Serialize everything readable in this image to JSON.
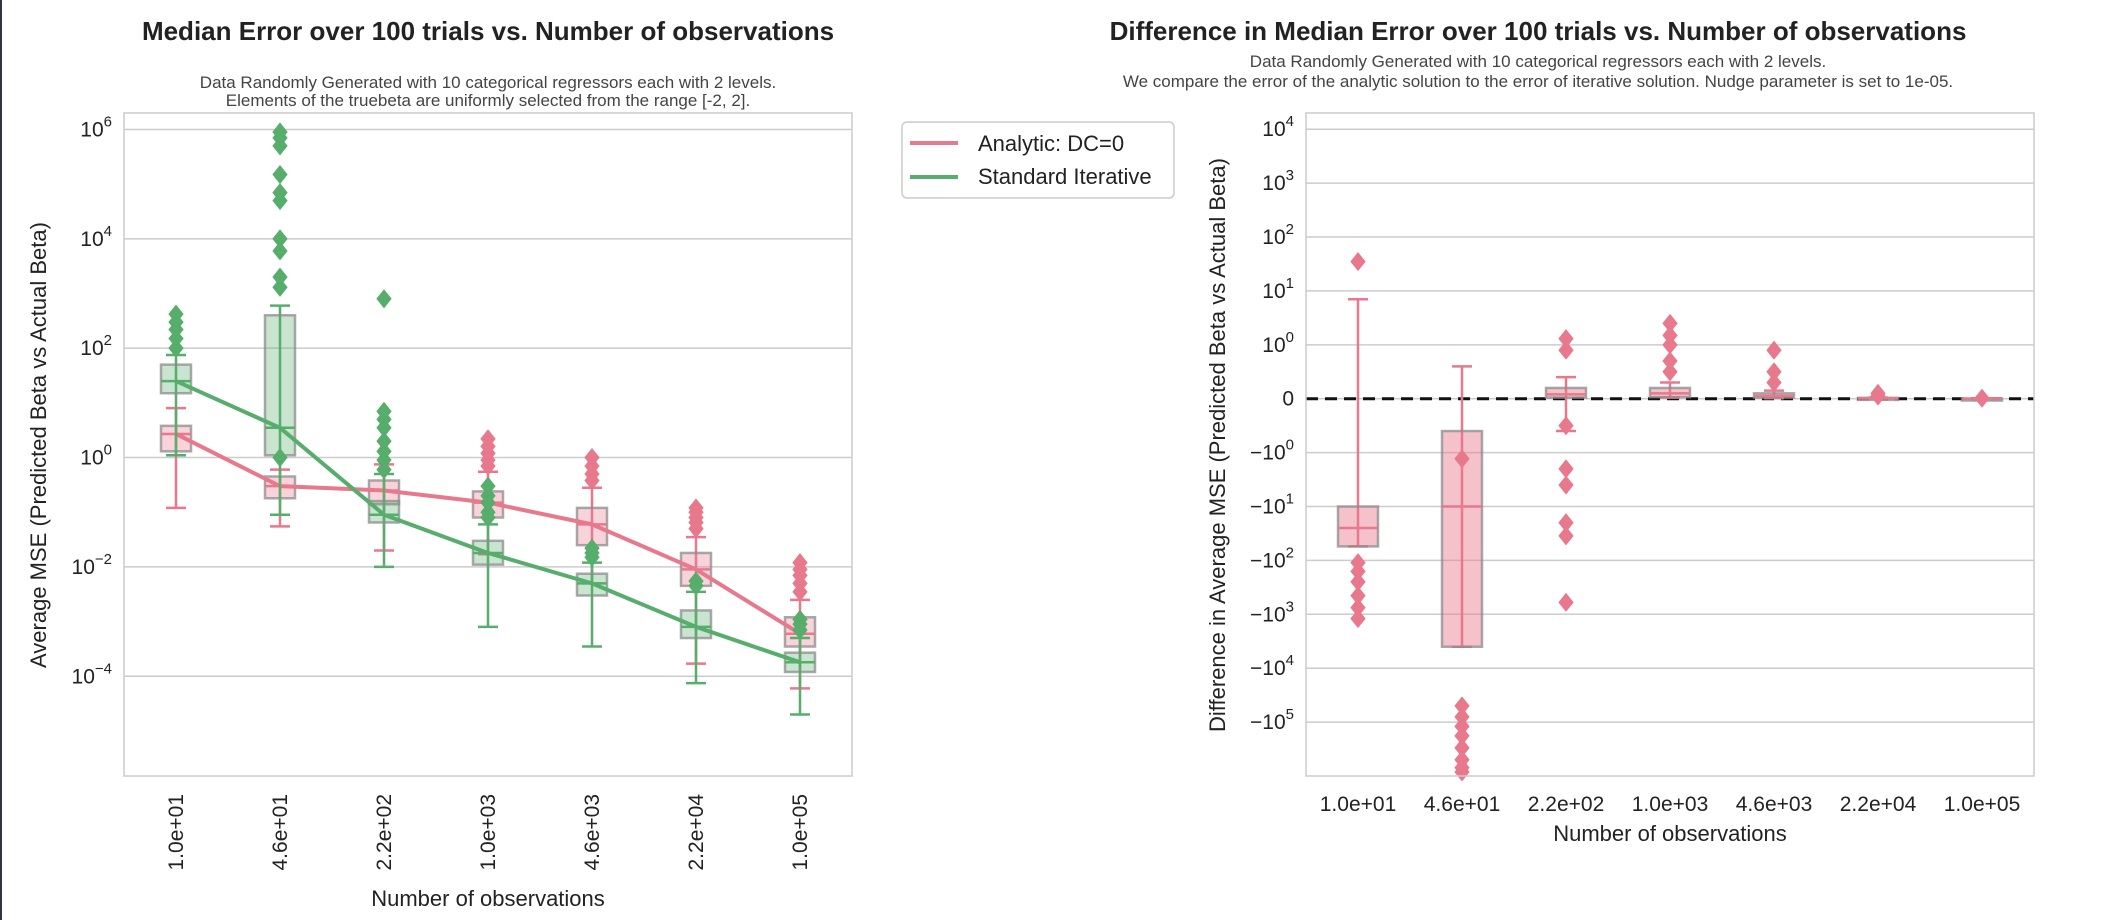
{
  "colors": {
    "analytic": "#e8788c",
    "iterative": "#56ad6c",
    "grid": "#cccccc",
    "frame": "#cccccc",
    "zero_line": "#111111"
  },
  "chart_data": [
    {
      "type": "box",
      "title": "Median Error over 100 trials vs. Number of observations",
      "subtitle": [
        "Data Randomly Generated with 10 categorical regressors each with 2 levels.",
        "Elements of the truebeta are uniformly selected from the range [-2, 2]."
      ],
      "xlabel": "Number of observations",
      "ylabel": "Average MSE (Predicted Beta vs Actual Beta)",
      "yscale": "log",
      "ylim": [
        1.5e-06,
        2000000
      ],
      "yticks": [
        {
          "value": 0.0001,
          "base": "10",
          "exp": "−4"
        },
        {
          "value": 0.01,
          "base": "10",
          "exp": "−2"
        },
        {
          "value": 1,
          "base": "10",
          "exp": "0"
        },
        {
          "value": 100,
          "base": "10",
          "exp": "2"
        },
        {
          "value": 10000,
          "base": "10",
          "exp": "4"
        },
        {
          "value": 1000000,
          "base": "10",
          "exp": "6"
        }
      ],
      "grid": true,
      "categories": [
        "1.0e+01",
        "4.6e+01",
        "2.2e+02",
        "1.0e+03",
        "4.6e+03",
        "2.2e+04",
        "1.0e+05"
      ],
      "legend": {
        "placement": "outside right",
        "entries": [
          "Analytic: DC=0",
          "Standard Iterative"
        ]
      },
      "series": [
        {
          "name": "Analytic: DC=0",
          "color": "#e8788c",
          "median_line": [
            2.7,
            0.3,
            0.25,
            0.15,
            0.06,
            0.009,
            0.0006
          ],
          "boxes": [
            {
              "q1": 1.3,
              "med": 2.7,
              "q3": 3.8,
              "wlo": 0.12,
              "whi": 8,
              "fliers": []
            },
            {
              "q1": 0.18,
              "med": 0.3,
              "q3": 0.45,
              "wlo": 0.055,
              "whi": 0.6,
              "fliers": []
            },
            {
              "q1": 0.14,
              "med": 0.25,
              "q3": 0.38,
              "wlo": 0.02,
              "whi": 0.75,
              "fliers": []
            },
            {
              "q1": 0.08,
              "med": 0.15,
              "q3": 0.24,
              "wlo": 0.017,
              "whi": 0.55,
              "fliers": [
                0.7,
                0.9,
                1.2,
                1.6,
                2.2
              ]
            },
            {
              "q1": 0.025,
              "med": 0.06,
              "q3": 0.12,
              "wlo": 0.005,
              "whi": 0.28,
              "fliers": [
                0.38,
                0.5,
                0.7,
                1.0
              ]
            },
            {
              "q1": 0.0045,
              "med": 0.009,
              "q3": 0.018,
              "wlo": 0.00017,
              "whi": 0.035,
              "fliers": [
                0.05,
                0.065,
                0.08,
                0.1,
                0.12
              ]
            },
            {
              "q1": 0.00035,
              "med": 0.0006,
              "q3": 0.0012,
              "wlo": 6e-05,
              "whi": 0.0025,
              "fliers": [
                0.0035,
                0.005,
                0.007,
                0.009,
                0.012
              ]
            }
          ]
        },
        {
          "name": "Standard Iterative",
          "color": "#56ad6c",
          "median_line": [
            25,
            3.5,
            0.09,
            0.018,
            0.005,
            0.0008,
            0.00018
          ],
          "boxes": [
            {
              "q1": 15,
              "med": 25,
              "q3": 50,
              "wlo": 1.1,
              "whi": 75,
              "fliers": [
                100,
                150,
                220,
                300,
                420
              ]
            },
            {
              "q1": 1.1,
              "med": 3.5,
              "q3": 400,
              "wlo": 0.09,
              "whi": 600,
              "fliers": [
                1.0,
                1300,
                2000,
                6000,
                10000,
                50000,
                70000,
                150000,
                500000,
                700000,
                900000
              ]
            },
            {
              "q1": 0.065,
              "med": 0.09,
              "q3": 0.16,
              "wlo": 0.01,
              "whi": 0.5,
              "fliers": [
                0.6,
                0.9,
                1.3,
                2.0,
                3.5,
                5,
                7,
                800
              ]
            },
            {
              "q1": 0.011,
              "med": 0.018,
              "q3": 0.03,
              "wlo": 0.0008,
              "whi": 0.06,
              "fliers": [
                0.08,
                0.1,
                0.15,
                0.2,
                0.3
              ]
            },
            {
              "q1": 0.003,
              "med": 0.005,
              "q3": 0.0075,
              "wlo": 0.00035,
              "whi": 0.012,
              "fliers": [
                0.015,
                0.018,
                0.022
              ]
            },
            {
              "q1": 0.0005,
              "med": 0.0008,
              "q3": 0.0016,
              "wlo": 7.5e-05,
              "whi": 0.0035,
              "fliers": [
                0.0045,
                0.0055
              ]
            },
            {
              "q1": 0.00012,
              "med": 0.00018,
              "q3": 0.00027,
              "wlo": 2e-05,
              "whi": 0.0005,
              "fliers": [
                0.0007,
                0.0009,
                0.0011
              ]
            }
          ]
        }
      ]
    },
    {
      "type": "box",
      "title": "Difference in Median Error over 100 trials vs. Number of observations",
      "subtitle": [
        "Data Randomly Generated with 10 categorical regressors each with 2 levels.",
        "We compare the error of the analytic solution to the error of iterative solution. Nudge parameter is set to 1e-05."
      ],
      "xlabel": "Number of observations",
      "ylabel": "Difference in Average MSE (Predicted Beta vs Actual Beta)",
      "yscale": "symlog",
      "ylim": [
        -1000000,
        20000
      ],
      "yticks": [
        {
          "value": 10000,
          "base": "10",
          "exp": "4"
        },
        {
          "value": 1000,
          "base": "10",
          "exp": "3"
        },
        {
          "value": 100,
          "base": "10",
          "exp": "2"
        },
        {
          "value": 10,
          "base": "10",
          "exp": "1"
        },
        {
          "value": 1,
          "base": "10",
          "exp": "0"
        },
        {
          "value": 0,
          "base": "0",
          "exp": ""
        },
        {
          "value": -1,
          "base": "−10",
          "exp": "0"
        },
        {
          "value": -10,
          "base": "−10",
          "exp": "1"
        },
        {
          "value": -100,
          "base": "−10",
          "exp": "2"
        },
        {
          "value": -1000,
          "base": "−10",
          "exp": "3"
        },
        {
          "value": -10000,
          "base": "−10",
          "exp": "4"
        },
        {
          "value": -100000,
          "base": "−10",
          "exp": "5"
        }
      ],
      "grid": true,
      "reference_line": {
        "y": 0,
        "style": "dashed"
      },
      "categories": [
        "1.0e+01",
        "4.6e+01",
        "2.2e+02",
        "1.0e+03",
        "4.6e+03",
        "2.2e+04",
        "1.0e+05"
      ],
      "series": [
        {
          "name": "",
          "color": "#e8788c",
          "boxes": [
            {
              "q1": -55,
              "med": -25,
              "q3": -10,
              "wlo": -55,
              "whi": 7,
              "fliers": [
                35,
                -110,
                -160,
                -250,
                -450,
                -750,
                -1200
              ]
            },
            {
              "q1": -4000,
              "med": -10,
              "q3": -0.6,
              "wlo": -4000,
              "whi": 0.6,
              "fliers": [
                -1.3,
                -50000,
                -80000,
                -120000,
                -180000,
                -300000,
                -500000,
                -700000,
                -900000
              ]
            },
            {
              "q1": 0.02,
              "med": 0.08,
              "q3": 0.2,
              "wlo": -0.6,
              "whi": 0.4,
              "fliers": [
                1.3,
                0.9,
                -0.5,
                -2.0,
                -4.0,
                -20,
                -35,
                -600
              ]
            },
            {
              "q1": 0.03,
              "med": 0.1,
              "q3": 0.2,
              "wlo": 0.02,
              "whi": 0.3,
              "fliers": [
                0.5,
                0.7,
                1.0,
                1.5,
                2.5
              ]
            },
            {
              "q1": 0.02,
              "med": 0.05,
              "q3": 0.1,
              "wlo": 0.01,
              "whi": 0.15,
              "fliers": [
                0.3,
                0.5,
                0.9
              ]
            },
            {
              "q1": 0.005,
              "med": 0.01,
              "q3": 0.015,
              "wlo": 0.003,
              "whi": 0.02,
              "fliers": [
                0.05,
                0.1
              ]
            },
            {
              "q1": 0.001,
              "med": 0.002,
              "q3": 0.003,
              "wlo": 0.001,
              "whi": 0.004,
              "fliers": [
                0.01
              ]
            }
          ]
        }
      ]
    }
  ]
}
